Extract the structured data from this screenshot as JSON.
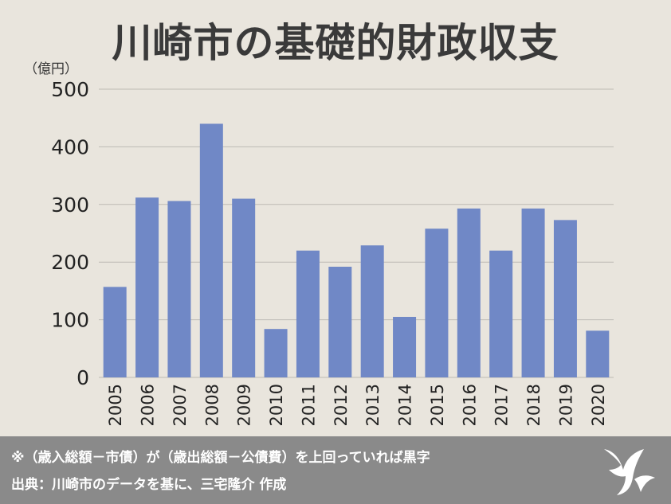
{
  "title": "川崎市の基礎的財政収支",
  "unit_label": "（億円）",
  "footer": {
    "note": "※（歳入総額－市債）が（歳出総額－公債費）を上回っていれば黒字",
    "source": "出典：川崎市のデータを基に、三宅隆介 作成"
  },
  "colors": {
    "background": "#e9e5dd",
    "bar": "#7088c6",
    "grid": "#bdbab4",
    "footer": "#8a8a8a"
  },
  "chart_data": {
    "type": "bar",
    "title": "川崎市の基礎的財政収支",
    "ylabel": "（億円）",
    "xlabel": "",
    "categories": [
      "2005",
      "2006",
      "2007",
      "2008",
      "2009",
      "2010",
      "2011",
      "2012",
      "2013",
      "2014",
      "2015",
      "2016",
      "2017",
      "2018",
      "2019",
      "2020"
    ],
    "values": [
      157,
      312,
      306,
      440,
      310,
      84,
      220,
      192,
      229,
      105,
      258,
      293,
      220,
      293,
      273,
      81
    ],
    "ylim": [
      0,
      500
    ],
    "yticks": [
      "0",
      "100",
      "200",
      "300",
      "400",
      "500"
    ],
    "grid": true
  }
}
